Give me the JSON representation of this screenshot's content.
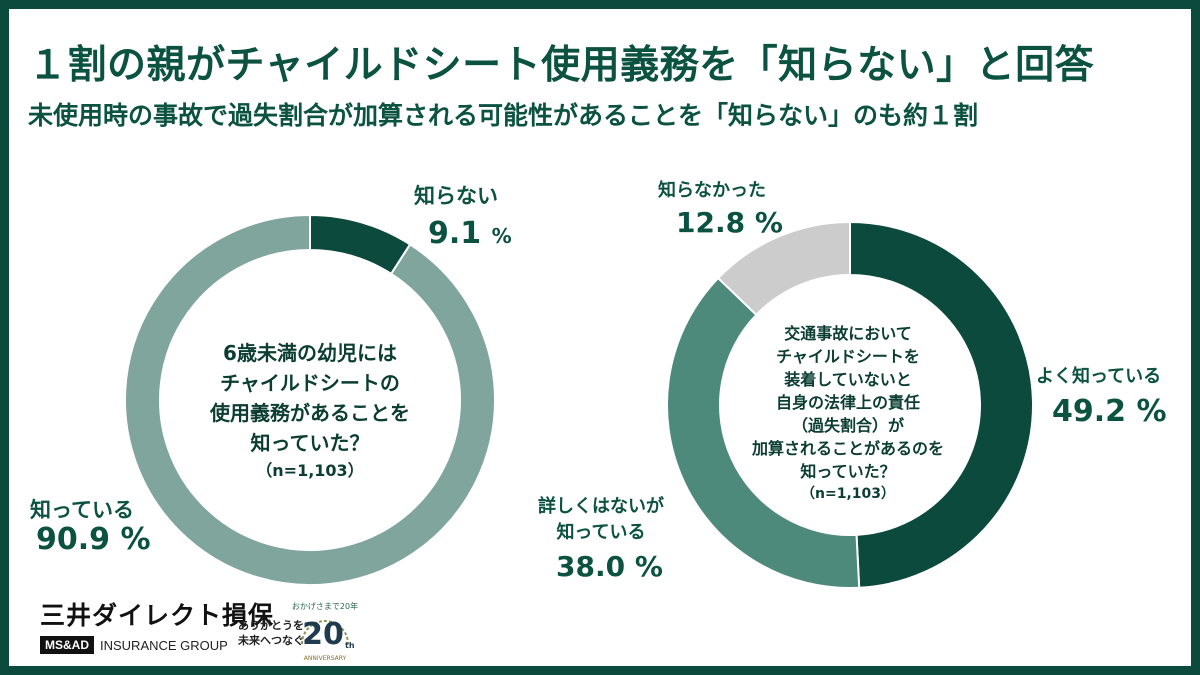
{
  "title": "１割の親がチャイルドシート使用義務を「知らない」と回答",
  "subtitle": "未使用時の事故で過失割合が加算される可能性があることを「知らない」のも約１割",
  "chart_data": [
    {
      "type": "pie",
      "donut": true,
      "question_lines": [
        "6歳未満の幼児には",
        "チャイルドシートの",
        "使用義務があることを",
        "知っていた？"
      ],
      "sample_size": "（n=1,103）",
      "unit": "%",
      "slices": [
        {
          "name": "知らない",
          "value": 9.1,
          "value_text": "9.1",
          "color": "#0b4a3c"
        },
        {
          "name": "知っている",
          "value": 90.9,
          "value_text": "90.9 %",
          "color": "#7fa59c"
        }
      ]
    },
    {
      "type": "pie",
      "donut": true,
      "question_lines": [
        "交通事故において",
        "チャイルドシートを",
        "装着していないと",
        "自身の法律上の責任",
        "（過失割合）が",
        "加算されることがあるのを",
        "知っていた？"
      ],
      "sample_size": "（n=1,103）",
      "slices": [
        {
          "name": "よく知っている",
          "value": 49.2,
          "value_text": "49.2 %",
          "color": "#0b4a3c"
        },
        {
          "name": "詳しくはないが\n知っている",
          "name_lines": [
            "詳しくはないが",
            "知っている"
          ],
          "value": 38.0,
          "value_text": "38.0 %",
          "color": "#4e8a7b"
        },
        {
          "name": "知らなかった",
          "value": 12.8,
          "value_text": "12.8 %",
          "color": "#cccccc"
        }
      ]
    }
  ],
  "logo": {
    "company": "三井ダイレクト損保",
    "group_box": "MS&AD",
    "group_text": "INSURANCE GROUP",
    "anniv_lines": [
      "ありがとうを",
      "未来へつなぐ"
    ],
    "anniv_arc": "おかげさまで20年",
    "anniv_num": "20",
    "anniv_th": "th",
    "anniv_word": "ANNIVERSARY"
  }
}
